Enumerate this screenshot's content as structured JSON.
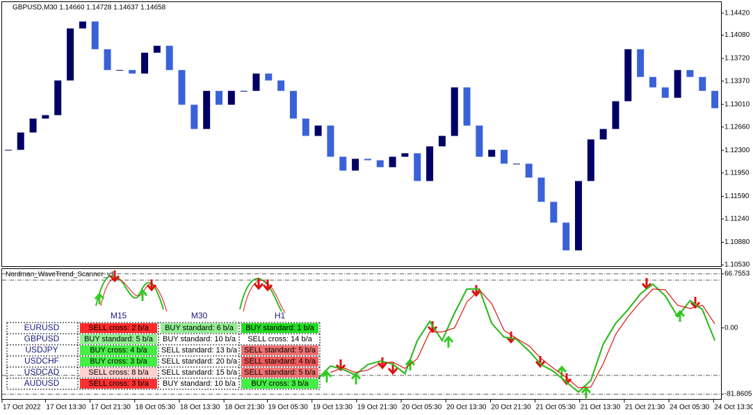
{
  "chart_data": [
    {
      "type": "candlestick",
      "title": "GBPUSD,M30  1.14660 1.14728 1.14637 1.14658",
      "close": [
        1.12308,
        1.12576,
        1.12791,
        1.12844,
        1.1338,
        1.14184,
        1.14291,
        1.13863,
        1.13541,
        1.13541,
        1.13487,
        1.13809,
        1.13916,
        1.13541,
        1.13005,
        1.1263,
        1.13219,
        1.13005,
        1.13219,
        1.13219,
        1.13487,
        1.1338,
        1.13219,
        1.12791,
        1.12523,
        1.12683,
        1.12201,
        1.11987,
        1.12169,
        1.12147,
        1.1204,
        1.12201,
        1.12255,
        1.11826,
        1.12362,
        1.12523,
        1.13273,
        1.12683,
        1.12201,
        1.12308,
        1.12094,
        1.12094,
        1.11879,
        1.11504,
        1.11183,
        1.10754,
        1.11826,
        1.12469,
        1.1263,
        1.13059,
        1.13863,
        1.13434,
        1.13273,
        1.13112,
        1.13541,
        1.13434,
        1.13219,
        1.12951
      ],
      "up_color": "#000066",
      "down_color": "#3a62d8",
      "xlim": [
        -0.5,
        57.5
      ],
      "ylim": [
        1.10509,
        1.14591
      ],
      "yticks": [
        {
          "value": 1.1442,
          "label": "1.14420"
        },
        {
          "value": 1.1408,
          "label": "1.14080"
        },
        {
          "value": 1.1372,
          "label": "1.13720"
        },
        {
          "value": 1.1337,
          "label": "1.13370"
        },
        {
          "value": 1.1301,
          "label": "1.13010"
        },
        {
          "value": 1.1266,
          "label": "1.12660"
        },
        {
          "value": 1.123,
          "label": "1.12300"
        },
        {
          "value": 1.1195,
          "label": "1.11950"
        },
        {
          "value": 1.1159,
          "label": "1.11590"
        },
        {
          "value": 1.1124,
          "label": "1.11240"
        },
        {
          "value": 1.1088,
          "label": "1.10880"
        },
        {
          "value": 1.1053,
          "label": "1.10530"
        }
      ]
    },
    {
      "type": "line",
      "title": "Nordman_WaveTrend_Scanner_v1",
      "series": [
        {
          "color": "#33bb22",
          "x": [
            25,
            26,
            27,
            28,
            29,
            30,
            31,
            32,
            33,
            34,
            35,
            36,
            37,
            38,
            39,
            40,
            41,
            42,
            43,
            44,
            45,
            46,
            47,
            48,
            49,
            50,
            51,
            52,
            53,
            54,
            55,
            56,
            57
          ],
          "values": [
            -62.3,
            -47,
            -51.3,
            -58,
            -45.3,
            -41,
            -44.5,
            -56.5,
            -15.6,
            8.1,
            -15.6,
            18.3,
            48,
            48,
            5.6,
            -11.4,
            -13.9,
            -28.4,
            -45.3,
            -53.8,
            -66.6,
            -79.2,
            -64.9,
            -19.9,
            5.6,
            22.6,
            42.1,
            54,
            39.6,
            14.1,
            33.6,
            22.6,
            -15.6
          ]
        },
        {
          "color": "#dd1111",
          "x": [
            26,
            27,
            28,
            29,
            30,
            31,
            32,
            33,
            34,
            35,
            36,
            37,
            38,
            39,
            40,
            41,
            42,
            43,
            44,
            45,
            46,
            47,
            48,
            49,
            50,
            51,
            52,
            53,
            54,
            55,
            56,
            57
          ],
          "values": [
            -55,
            -49,
            -55,
            -52,
            -44,
            -42,
            -50,
            -38,
            -5,
            -5,
            0,
            32,
            47,
            30,
            -3,
            -13,
            -22,
            -38,
            -50,
            -61,
            -74,
            -73,
            -44,
            -8,
            14,
            32,
            48,
            47,
            28,
            24,
            28,
            5
          ]
        }
      ],
      "xlim": [
        -0.5,
        57.5
      ],
      "ylim": [
        -87.8,
        72.7
      ],
      "yticks": [
        66.7553,
        {
          "value": 0,
          "label": "0.00"
        },
        -81.8605
      ],
      "xticks": [
        {
          "value": -0.5,
          "label": "17 Oct 2022"
        },
        {
          "value": 3,
          "label": "17 Oct 13:30"
        },
        {
          "value": 6.6,
          "label": "17 Oct 21:30"
        },
        {
          "value": 10.2,
          "label": "18 Oct 05:30"
        },
        {
          "value": 13.8,
          "label": "18 Oct 13:30"
        },
        {
          "value": 17.4,
          "label": "18 Oct 21:30"
        },
        {
          "value": 20.9,
          "label": "19 Oct 05:30"
        },
        {
          "value": 24.5,
          "label": "19 Oct 13:30"
        },
        {
          "value": 28.1,
          "label": "19 Oct 21:30"
        },
        {
          "value": 31.7,
          "label": "20 Oct 05:30"
        },
        {
          "value": 35.3,
          "label": "20 Oct 13:30"
        },
        {
          "value": 38.9,
          "label": "20 Oct 21:30"
        },
        {
          "value": 42.5,
          "label": "21 Oct 05:30"
        },
        {
          "value": 46.1,
          "label": "21 Oct 13:30"
        },
        {
          "value": 49.7,
          "label": "21 Oct 21:30"
        },
        {
          "value": 53.3,
          "label": "24 Oct 05:30"
        },
        {
          "value": 56.9,
          "label": "24 Oct 13:30"
        }
      ]
    }
  ],
  "scanner": {
    "columns": [
      "M15",
      "M30",
      "H1"
    ],
    "rows": [
      {
        "pair": "EURUSD",
        "cells": [
          {
            "text": "SELL cross: 2 b/a",
            "color": "#ff2a2a"
          },
          {
            "text": "BUY standard: 6 b/a",
            "color": "#90ee90"
          },
          {
            "text": "BUY standard: 1 b/a",
            "color": "#22dd22"
          }
        ]
      },
      {
        "pair": "GBPUSD",
        "cells": [
          {
            "text": "BUY standard: 5 b/a",
            "color": "#90ee90"
          },
          {
            "text": "BUY standard: 10 b/a",
            "color": "#ffffff"
          },
          {
            "text": "SELL cross: 14 b/a",
            "color": "#ffffff"
          }
        ]
      },
      {
        "pair": "USDJPY",
        "cells": [
          {
            "text": "BUY cross: 4 b/a",
            "color": "#44ee44"
          },
          {
            "text": "SELL standard: 13 b/a",
            "color": "#ffffff"
          },
          {
            "text": "SELL standard: 5 b/a",
            "color": "#f07070"
          }
        ]
      },
      {
        "pair": "USDCHF",
        "cells": [
          {
            "text": "BUY cross: 3 b/a",
            "color": "#44ee44"
          },
          {
            "text": "SELL standard: 20 b/a",
            "color": "#ffffff"
          },
          {
            "text": "SELL standard: 4 b/a",
            "color": "#f05a5a"
          }
        ]
      },
      {
        "pair": "USDCAD",
        "cells": [
          {
            "text": "SELL cross: 8 b/a",
            "color": "#ffd0d0"
          },
          {
            "text": "SELL standard: 15 b/a",
            "color": "#ffffff"
          },
          {
            "text": "SELL standard: 5 b/a",
            "color": "#f07070"
          }
        ]
      },
      {
        "pair": "AUDUSD",
        "cells": [
          {
            "text": "SELL cross: 3 b/a",
            "color": "#ff3030"
          },
          {
            "text": "BUY standard: 10 b/a",
            "color": "#ffffff"
          },
          {
            "text": "BUY cross: 3 b/a",
            "color": "#44ee44"
          }
        ]
      }
    ]
  }
}
